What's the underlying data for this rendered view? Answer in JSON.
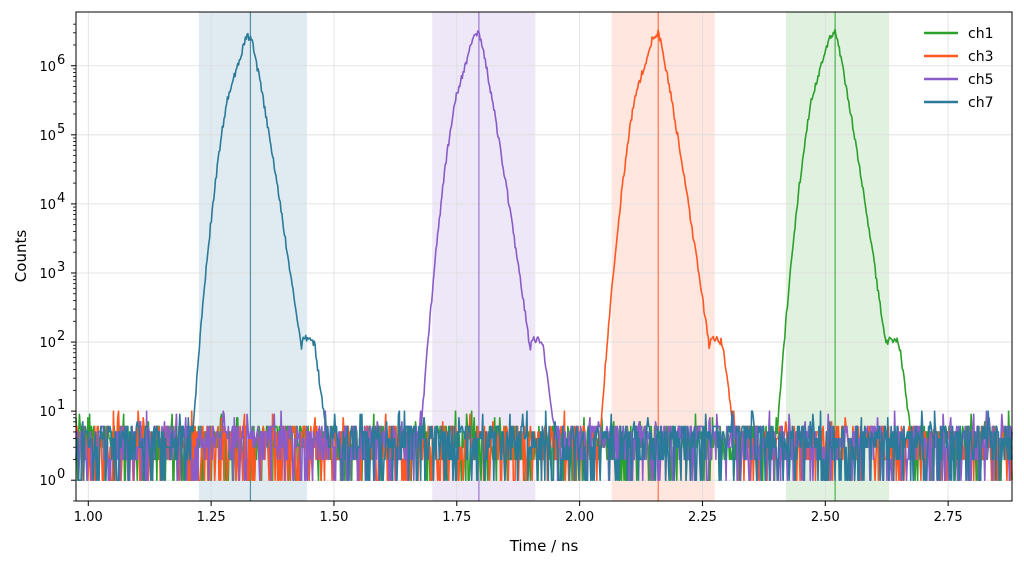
{
  "chart_data": {
    "type": "line",
    "title": "",
    "xlabel": "Time / ns",
    "ylabel": "Counts",
    "xscale": "linear",
    "yscale": "log",
    "xlim": [
      0.975,
      2.88
    ],
    "ylim": [
      0.5,
      6000000
    ],
    "grid": true,
    "legend_position": "top-right",
    "x_ticks": [
      1.0,
      1.25,
      1.5,
      1.75,
      2.0,
      2.25,
      2.5,
      2.75
    ],
    "x_tick_labels": [
      "1.00",
      "1.25",
      "1.50",
      "1.75",
      "2.00",
      "2.25",
      "2.50",
      "2.75"
    ],
    "y_ticks": [
      1,
      10,
      100,
      1000,
      10000,
      100000,
      1000000
    ],
    "y_tick_labels": [
      {
        "base": "10",
        "exp": "0"
      },
      {
        "base": "10",
        "exp": "1"
      },
      {
        "base": "10",
        "exp": "2"
      },
      {
        "base": "10",
        "exp": "3"
      },
      {
        "base": "10",
        "exp": "4"
      },
      {
        "base": "10",
        "exp": "5"
      },
      {
        "base": "10",
        "exp": "6"
      }
    ],
    "series": [
      {
        "name": "ch1",
        "color": "#2ca02c",
        "peak_x": 2.52,
        "peak_counts": 3000000,
        "window": [
          2.42,
          2.63
        ],
        "bump_x": 2.645,
        "bump_counts": 100
      },
      {
        "name": "ch3",
        "color": "#ff5722",
        "peak_x": 2.16,
        "peak_counts": 3000000,
        "window": [
          2.065,
          2.275
        ],
        "bump_x": 2.29,
        "bump_counts": 100
      },
      {
        "name": "ch5",
        "color": "#8a5cc8",
        "peak_x": 1.795,
        "peak_counts": 3000000,
        "window": [
          1.7,
          1.91
        ],
        "bump_x": 1.92,
        "bump_counts": 100
      },
      {
        "name": "ch7",
        "color": "#2b7a99",
        "peak_x": 1.33,
        "peak_counts": 2700000,
        "window": [
          1.225,
          1.445
        ],
        "bump_x": 1.455,
        "bump_counts": 100
      }
    ],
    "background_counts": [
      1,
      10
    ]
  }
}
